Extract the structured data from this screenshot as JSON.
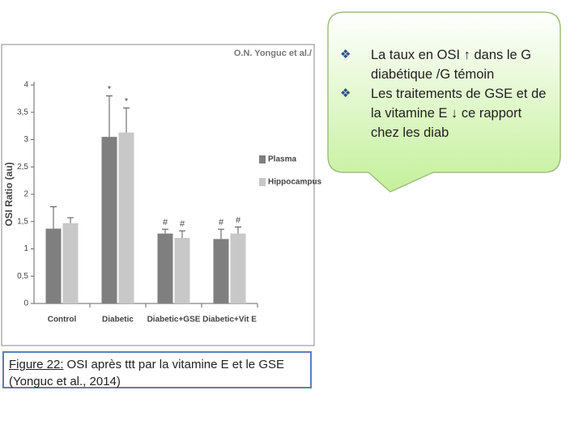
{
  "chart_data": {
    "type": "bar",
    "source": "O.N. Yonguc et al./",
    "y_label": "OSI Ratio (au)",
    "categories": [
      "Control",
      "Diabetic",
      "Diabetic+GSE",
      "Diabetic+Vit E"
    ],
    "series": [
      {
        "name": "Plasma",
        "color": "#7f7f7f",
        "values": [
          1.37,
          3.05,
          1.28,
          1.18
        ],
        "errors": [
          0.4,
          0.75,
          0.08,
          0.18
        ],
        "annotations": [
          null,
          "*",
          "#",
          "#"
        ]
      },
      {
        "name": "Hippocampus",
        "color": "#c8c8c8",
        "values": [
          1.47,
          3.13,
          1.2,
          1.28
        ],
        "errors": [
          0.1,
          0.45,
          0.13,
          0.12
        ],
        "annotations": [
          null,
          "*",
          "#",
          "#"
        ]
      }
    ],
    "ylim": [
      0,
      4
    ],
    "yticks": [
      0,
      {
        "value": 0.5,
        "label": "0,5"
      },
      1,
      {
        "value": 1.5,
        "label": "1,5"
      },
      2,
      {
        "value": 2.5,
        "label": "2,5"
      },
      3,
      {
        "value": 3.5,
        "label": "3,5"
      },
      4
    ],
    "legend": "right"
  },
  "caption": {
    "label": "Figure 22:",
    "text": "OSI après ttt par la vitamine E et le GSE (Yonguc et al., 2014)"
  },
  "callout": {
    "bullets": [
      "La taux  en OSI ↑ dans le G diabétique /G  témoin",
      "Les traitements de GSE et de la vitamine E ↓ ce rapport chez les diab"
    ]
  }
}
